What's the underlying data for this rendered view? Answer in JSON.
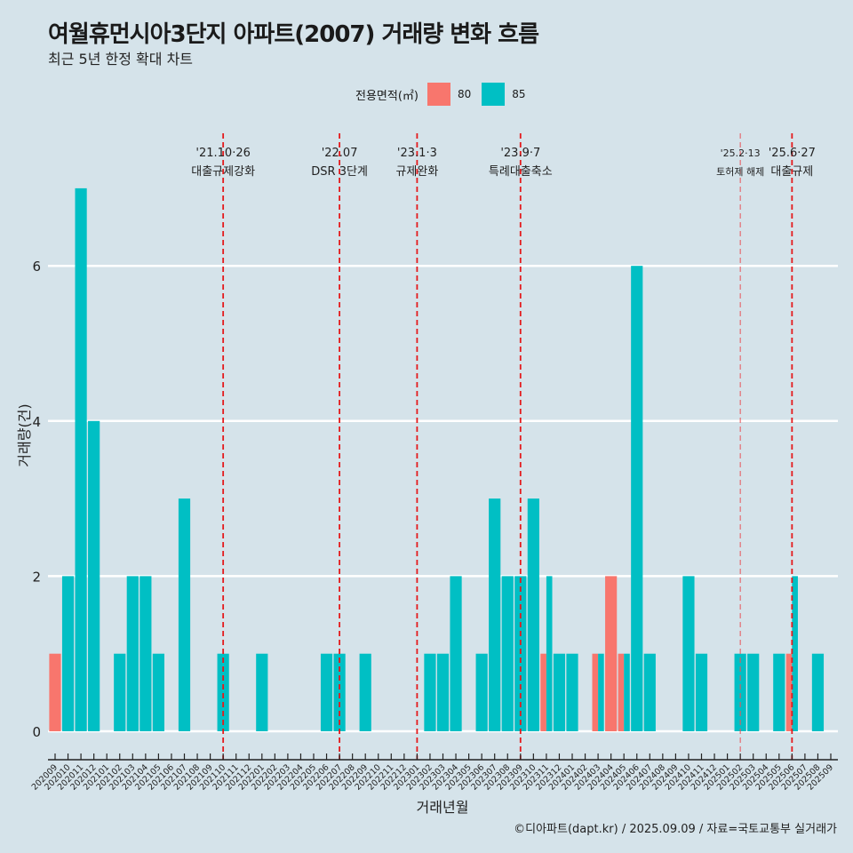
{
  "header": {
    "title": "여월휴먼시아3단지 아파트(2007) 거래량 변화 흐름",
    "subtitle": "최근 5년 한정 확대 차트"
  },
  "legend": {
    "title": "전용면적(㎡)",
    "items": [
      {
        "label": "80",
        "color": "#F8766D"
      },
      {
        "label": "85",
        "color": "#00BFC4"
      }
    ]
  },
  "footer": "©디아파트(dapt.kr) / 2025.09.09 / 자료=국토교통부 실거래가",
  "chart_data": {
    "type": "bar",
    "title": "여월휴먼시아3단지 아파트(2007) 거래량 변화 흐름",
    "subtitle": "최근 5년 한정 확대 차트",
    "xlabel": "거래년월",
    "ylabel": "거래량(건)",
    "ylim": [
      0,
      7.5
    ],
    "yticks": [
      0,
      2,
      4,
      6
    ],
    "grid": "horizontal",
    "legend_position": "top",
    "categories": [
      "202009",
      "202010",
      "202011",
      "202012",
      "202101",
      "202102",
      "202103",
      "202104",
      "202105",
      "202106",
      "202107",
      "202108",
      "202109",
      "202110",
      "202111",
      "202112",
      "202201",
      "202202",
      "202203",
      "202204",
      "202205",
      "202206",
      "202207",
      "202208",
      "202209",
      "202210",
      "202211",
      "202212",
      "202301",
      "202302",
      "202303",
      "202304",
      "202305",
      "202306",
      "202307",
      "202308",
      "202309",
      "202310",
      "202311",
      "202312",
      "202401",
      "202402",
      "202403",
      "202404",
      "202405",
      "202406",
      "202407",
      "202408",
      "202409",
      "202410",
      "202411",
      "202412",
      "202501",
      "202502",
      "202503",
      "202504",
      "202505",
      "202506",
      "202507",
      "202508",
      "202509"
    ],
    "series": [
      {
        "name": "80",
        "color": "#F8766D",
        "values": [
          1,
          0,
          0,
          0,
          0,
          0,
          0,
          0,
          0,
          0,
          0,
          0,
          0,
          0,
          0,
          0,
          0,
          0,
          0,
          0,
          0,
          0,
          0,
          0,
          0,
          0,
          0,
          0,
          0,
          0,
          0,
          0,
          0,
          0,
          0,
          0,
          0,
          0,
          1,
          0,
          0,
          0,
          1,
          2,
          1,
          0,
          0,
          0,
          0,
          0,
          0,
          0,
          0,
          0,
          0,
          0,
          0,
          1,
          0,
          0,
          0
        ]
      },
      {
        "name": "85",
        "color": "#00BFC4",
        "values": [
          0,
          2,
          7,
          4,
          0,
          1,
          2,
          2,
          1,
          0,
          3,
          0,
          0,
          1,
          0,
          0,
          1,
          0,
          0,
          0,
          0,
          1,
          1,
          0,
          1,
          0,
          0,
          0,
          0,
          1,
          1,
          2,
          0,
          1,
          3,
          2,
          2,
          3,
          2,
          1,
          1,
          0,
          1,
          0,
          1,
          6,
          1,
          0,
          0,
          2,
          1,
          0,
          0,
          1,
          1,
          0,
          1,
          2,
          0,
          1,
          0
        ]
      }
    ],
    "annotations": [
      {
        "month": "202110",
        "date": "'21.10·26",
        "label": "대출규제강화",
        "style": "bold"
      },
      {
        "month": "202207",
        "date": "'22.07",
        "label": "DSR 3단계",
        "style": "bold"
      },
      {
        "month": "202301",
        "date": "'23.1·3",
        "label": "규제완화",
        "style": "bold"
      },
      {
        "month": "202309",
        "date": "'23.9·7",
        "label": "특례대출축소",
        "style": "bold"
      },
      {
        "month": "202502",
        "date": "'25.2·13",
        "label": "토허제 해제",
        "style": "light"
      },
      {
        "month": "202506",
        "date": "'25.6·27",
        "label": "대출규제",
        "style": "bold"
      }
    ]
  }
}
